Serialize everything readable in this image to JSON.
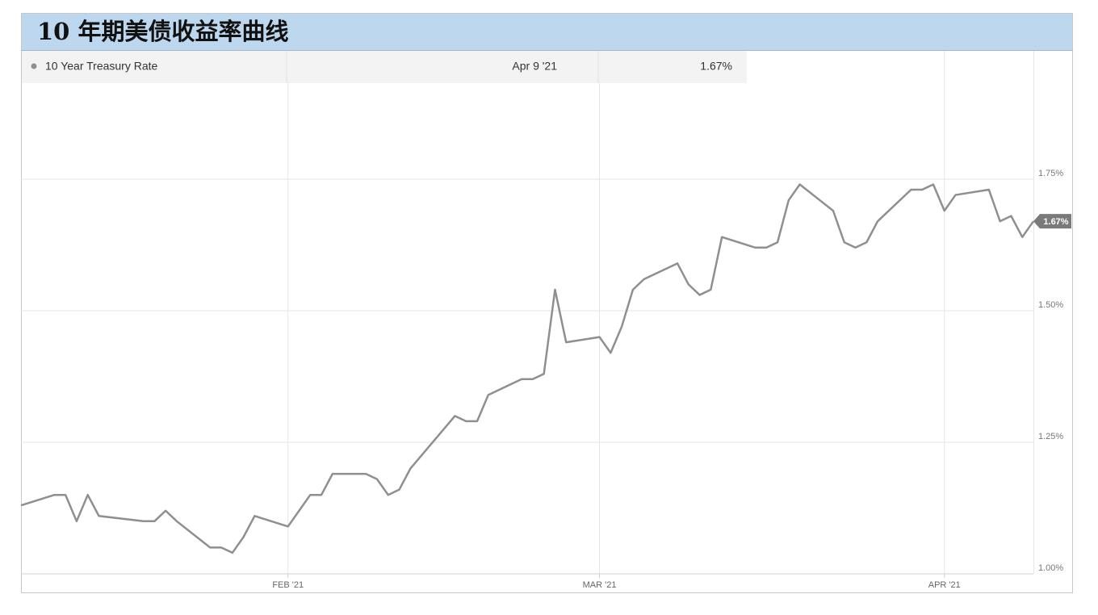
{
  "chart_data": {
    "type": "line",
    "title": "10 年期美债收益率曲线",
    "tooltip": {
      "series": "10 Year Treasury Rate",
      "date": "Apr 9 '21",
      "value": "1.67%"
    },
    "x": [
      8,
      11,
      12,
      13,
      14,
      15,
      19,
      20,
      21,
      22,
      25,
      26,
      27,
      28,
      29,
      32,
      33,
      34,
      35,
      36,
      39,
      40,
      41,
      42,
      43,
      47,
      48,
      49,
      50,
      53,
      54,
      55,
      56,
      57,
      60,
      61,
      62,
      63,
      64,
      67,
      68,
      69,
      70,
      71,
      74,
      75,
      76,
      77,
      78,
      81,
      82,
      83,
      84,
      85,
      88,
      89,
      90,
      91,
      92,
      95,
      96,
      97,
      98,
      99
    ],
    "series": [
      {
        "name": "10 Year Treasury Rate",
        "color": "#8f8f8f",
        "values": [
          1.13,
          1.15,
          1.15,
          1.1,
          1.15,
          1.11,
          1.1,
          1.1,
          1.12,
          1.1,
          1.05,
          1.05,
          1.04,
          1.07,
          1.11,
          1.09,
          1.12,
          1.15,
          1.15,
          1.19,
          1.19,
          1.18,
          1.15,
          1.16,
          1.2,
          1.3,
          1.29,
          1.29,
          1.34,
          1.37,
          1.37,
          1.38,
          1.54,
          1.44,
          1.45,
          1.42,
          1.47,
          1.54,
          1.56,
          1.59,
          1.55,
          1.53,
          1.54,
          1.64,
          1.62,
          1.62,
          1.63,
          1.71,
          1.74,
          1.69,
          1.63,
          1.62,
          1.63,
          1.67,
          1.73,
          1.73,
          1.74,
          1.69,
          1.72,
          1.73,
          1.67,
          1.68,
          1.64,
          1.67
        ]
      }
    ],
    "xlim": [
      8,
      99
    ],
    "xticks": [
      {
        "value": 32,
        "label": "FEB '21"
      },
      {
        "value": 60,
        "label": "MAR '21"
      },
      {
        "value": 91,
        "label": "APR '21"
      }
    ],
    "ylim": [
      1,
      1.99
    ],
    "yticks": [
      {
        "value": 1,
        "label": "1.00%"
      },
      {
        "value": 1.25,
        "label": "1.25%"
      },
      {
        "value": 1.5,
        "label": "1.50%"
      },
      {
        "value": 1.75,
        "label": "1.75%"
      }
    ],
    "grid": true
  }
}
